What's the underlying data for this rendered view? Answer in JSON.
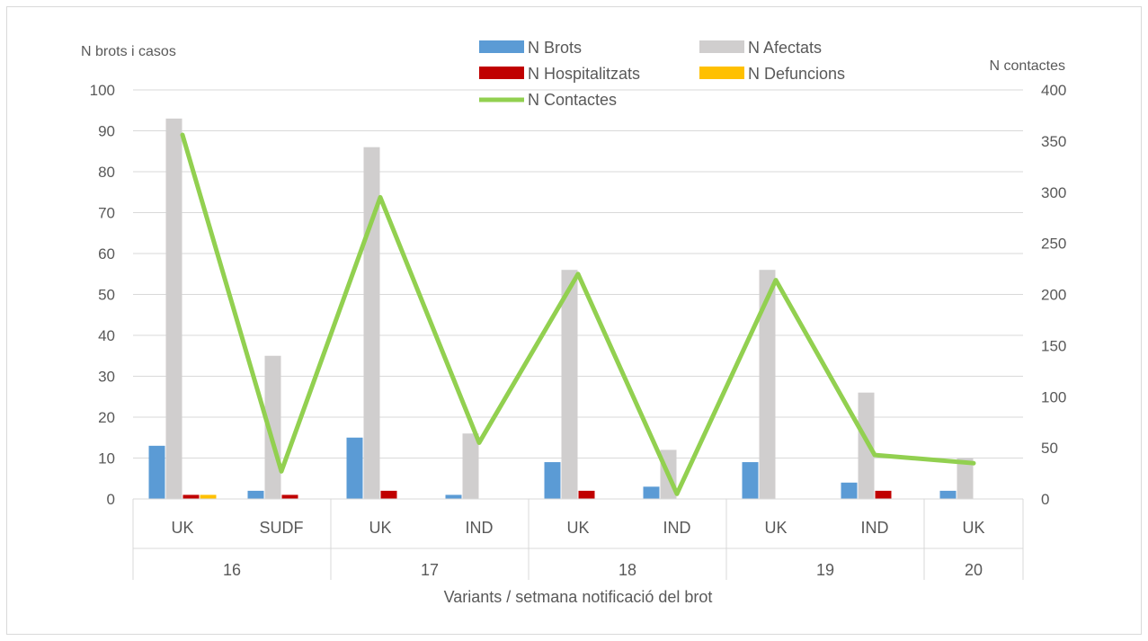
{
  "chart_data": {
    "type": "bar",
    "title": "",
    "ylabel": "N brots i casos",
    "y2label": "N contactes",
    "xlabel": "Variants / setmana notificació del brot",
    "ylim": [
      0,
      100
    ],
    "yticks": [
      0,
      10,
      20,
      30,
      40,
      50,
      60,
      70,
      80,
      90,
      100
    ],
    "y2lim": [
      0,
      400
    ],
    "y2ticks": [
      0,
      50,
      100,
      150,
      200,
      250,
      300,
      350,
      400
    ],
    "grid": true,
    "legend_position": "top",
    "categories": [
      "UK",
      "SUDF",
      "UK",
      "IND",
      "UK",
      "IND",
      "UK",
      "IND",
      "UK"
    ],
    "groups": [
      {
        "label": "16",
        "span": 2
      },
      {
        "label": "17",
        "span": 2
      },
      {
        "label": "18",
        "span": 2
      },
      {
        "label": "19",
        "span": 2
      },
      {
        "label": "20",
        "span": 1
      }
    ],
    "series": [
      {
        "name": "N Brots",
        "type": "bar",
        "axis": "left",
        "color": "#5b9bd5",
        "values": [
          13,
          2,
          15,
          1,
          9,
          3,
          9,
          4,
          2
        ]
      },
      {
        "name": "N Afectats",
        "type": "bar",
        "axis": "left",
        "color": "#d0cece",
        "values": [
          93,
          35,
          86,
          16,
          56,
          12,
          56,
          26,
          10
        ]
      },
      {
        "name": "N Hospitalitzats",
        "type": "bar",
        "axis": "left",
        "color": "#c00000",
        "values": [
          1,
          1,
          2,
          0,
          2,
          0,
          0,
          2,
          0
        ]
      },
      {
        "name": "N Defuncions",
        "type": "bar",
        "axis": "left",
        "color": "#ffc000",
        "values": [
          1,
          0,
          0,
          0,
          0,
          0,
          0,
          0,
          0
        ]
      },
      {
        "name": "N Contactes",
        "type": "line",
        "axis": "right",
        "color": "#92d050",
        "values": [
          356,
          27,
          295,
          55,
          220,
          5,
          214,
          43,
          35
        ]
      }
    ]
  }
}
